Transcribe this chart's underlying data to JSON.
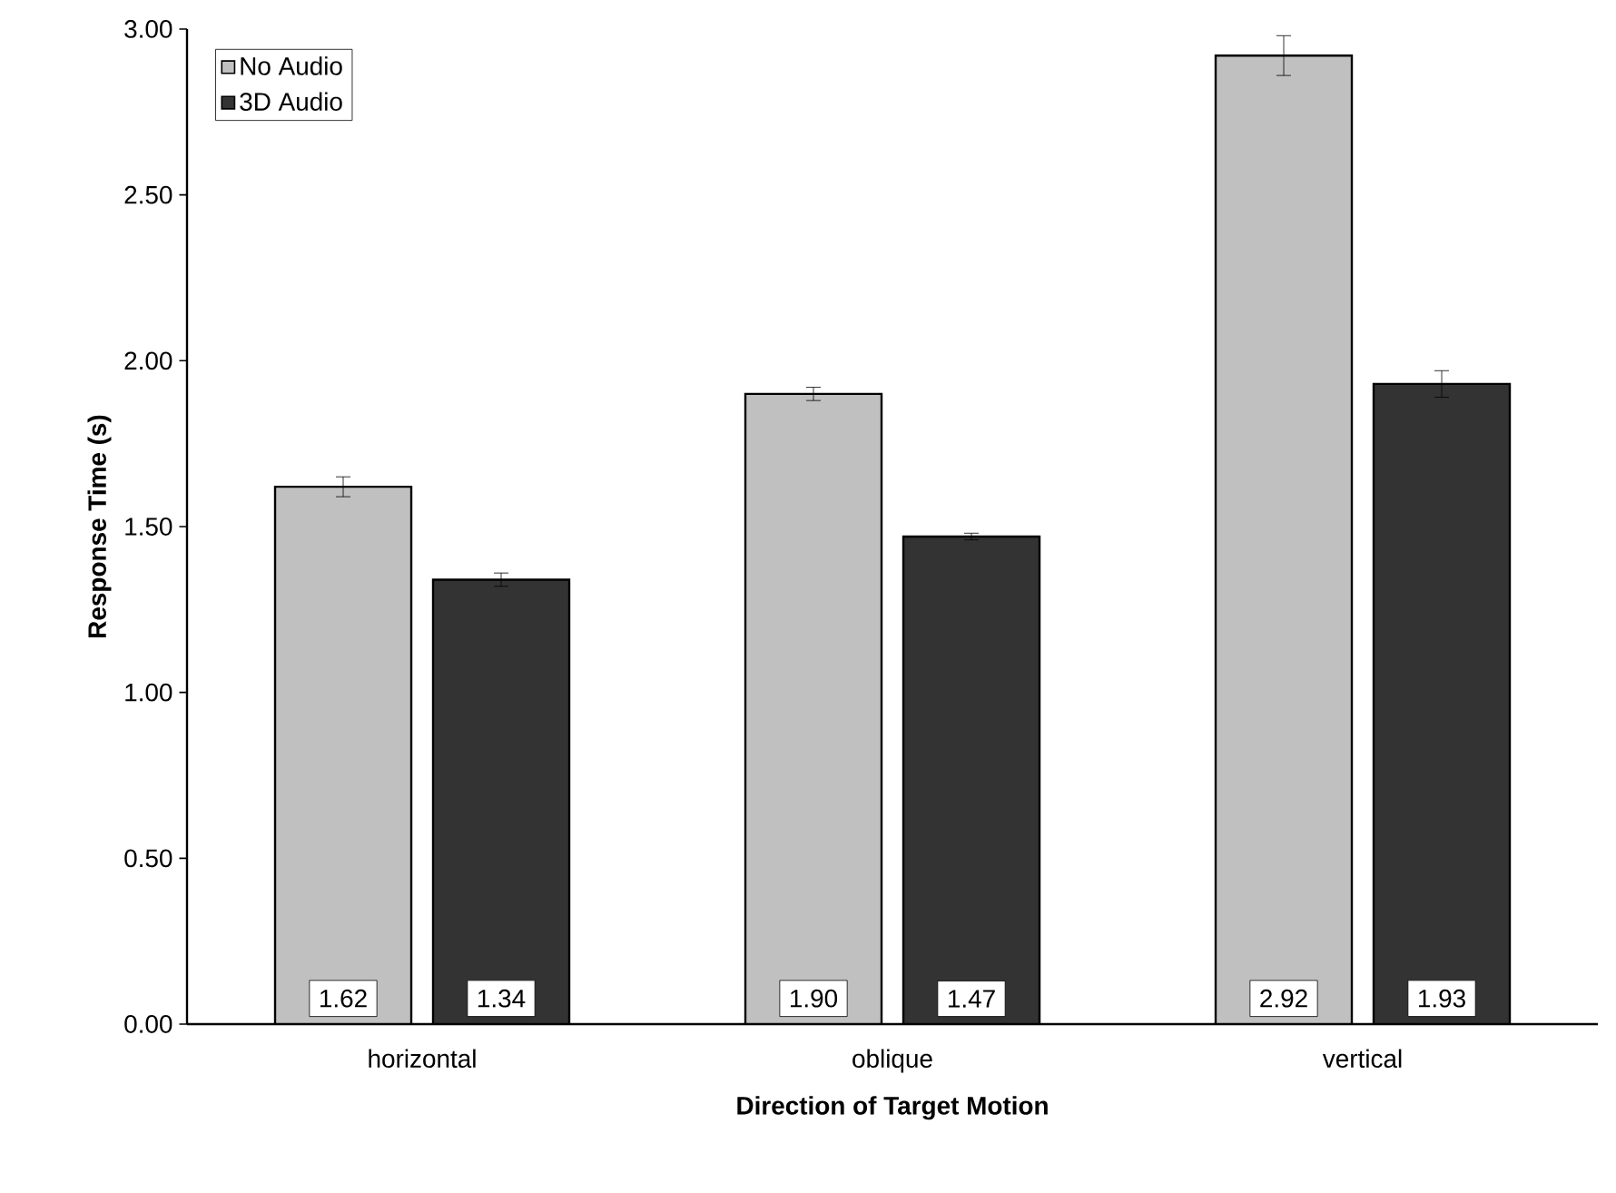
{
  "chart_data": {
    "type": "bar",
    "xlabel": "Direction of Target Motion",
    "ylabel": "Response Time (s)",
    "categories": [
      "horizontal",
      "oblique",
      "vertical"
    ],
    "series": [
      {
        "name": "No Audio",
        "color": "#c0c0c0",
        "values": [
          1.62,
          1.9,
          2.92
        ],
        "errors": [
          0.03,
          0.02,
          0.06
        ],
        "value_labels": [
          "1.62",
          "1.90",
          "2.92"
        ]
      },
      {
        "name": "3D Audio",
        "color": "#333333",
        "values": [
          1.34,
          1.47,
          1.93
        ],
        "errors": [
          0.02,
          0.01,
          0.04
        ],
        "value_labels": [
          "1.34",
          "1.47",
          "1.93"
        ]
      }
    ],
    "ylim": [
      0,
      3
    ],
    "yticks": [
      {
        "value": 0,
        "label": "0.00"
      },
      {
        "value": 0.5,
        "label": "0.50"
      },
      {
        "value": 1,
        "label": "1.00"
      },
      {
        "value": 1.5,
        "label": "1.50"
      },
      {
        "value": 2,
        "label": "2.00"
      },
      {
        "value": 2.5,
        "label": "2.50"
      },
      {
        "value": 3,
        "label": "3.00"
      }
    ],
    "legend": "top left",
    "grid": false
  }
}
